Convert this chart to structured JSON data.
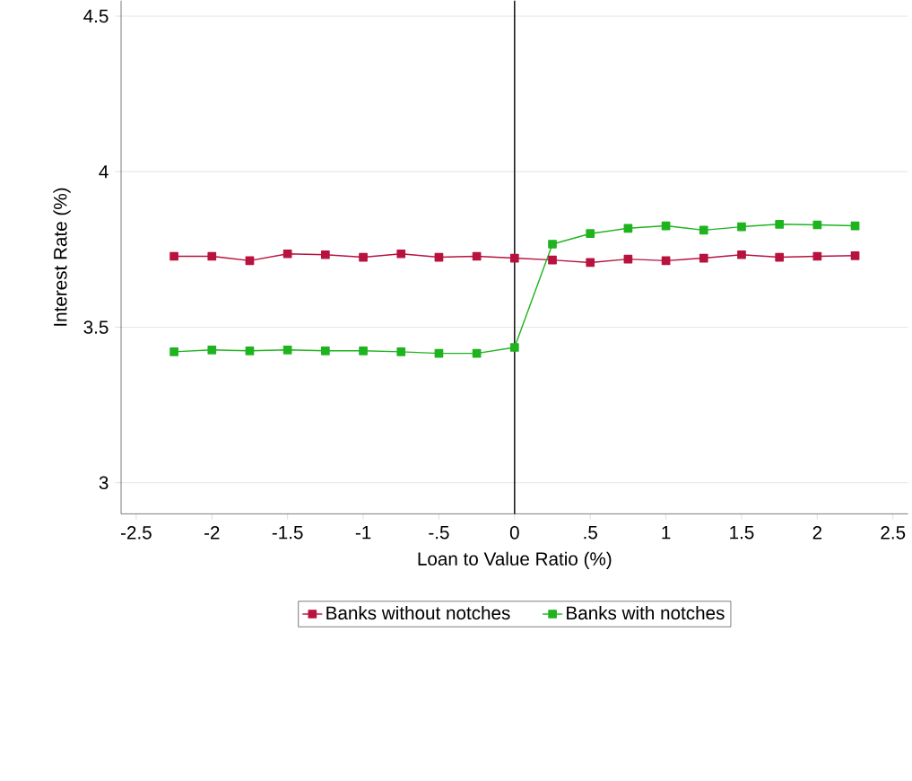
{
  "chart_data": {
    "type": "line",
    "xlabel": "Loan to Value Ratio (%)",
    "ylabel": "Interest Rate (%)",
    "x": [
      -2.25,
      -2,
      -1.75,
      -1.5,
      -1.25,
      -1,
      -0.75,
      -0.5,
      -0.25,
      0,
      0.25,
      0.5,
      0.75,
      1,
      1.25,
      1.5,
      1.75,
      2,
      2.25
    ],
    "series": [
      {
        "name": "Banks without notches",
        "color": "#b8123f",
        "values": [
          3.728,
          3.728,
          3.714,
          3.736,
          3.733,
          3.725,
          3.736,
          3.725,
          3.728,
          3.722,
          3.716,
          3.708,
          3.719,
          3.714,
          3.722,
          3.733,
          3.725,
          3.728,
          3.73
        ]
      },
      {
        "name": "Banks with notches",
        "color": "#1fb31f",
        "values": [
          3.421,
          3.427,
          3.424,
          3.427,
          3.424,
          3.424,
          3.421,
          3.416,
          3.416,
          3.435,
          3.767,
          3.801,
          3.818,
          3.826,
          3.812,
          3.823,
          3.831,
          3.829,
          3.826
        ]
      }
    ],
    "xlim": [
      -2.6,
      2.6
    ],
    "ylim": [
      2.9,
      4.55
    ],
    "xticks": [
      -2.5,
      -2,
      -1.5,
      -1,
      {
        "value": -0.5,
        "label": "-.5"
      },
      0,
      {
        "value": 0.5,
        "label": ".5"
      },
      1,
      1.5,
      2,
      2.5
    ],
    "yticks": [
      3,
      3.5,
      4,
      4.5
    ],
    "ref_lines": [
      {
        "axis": "x",
        "value": 0,
        "color": "#000000"
      }
    ],
    "grid": "y",
    "legend": "bottom",
    "marker": "square",
    "line_style": "solid"
  }
}
